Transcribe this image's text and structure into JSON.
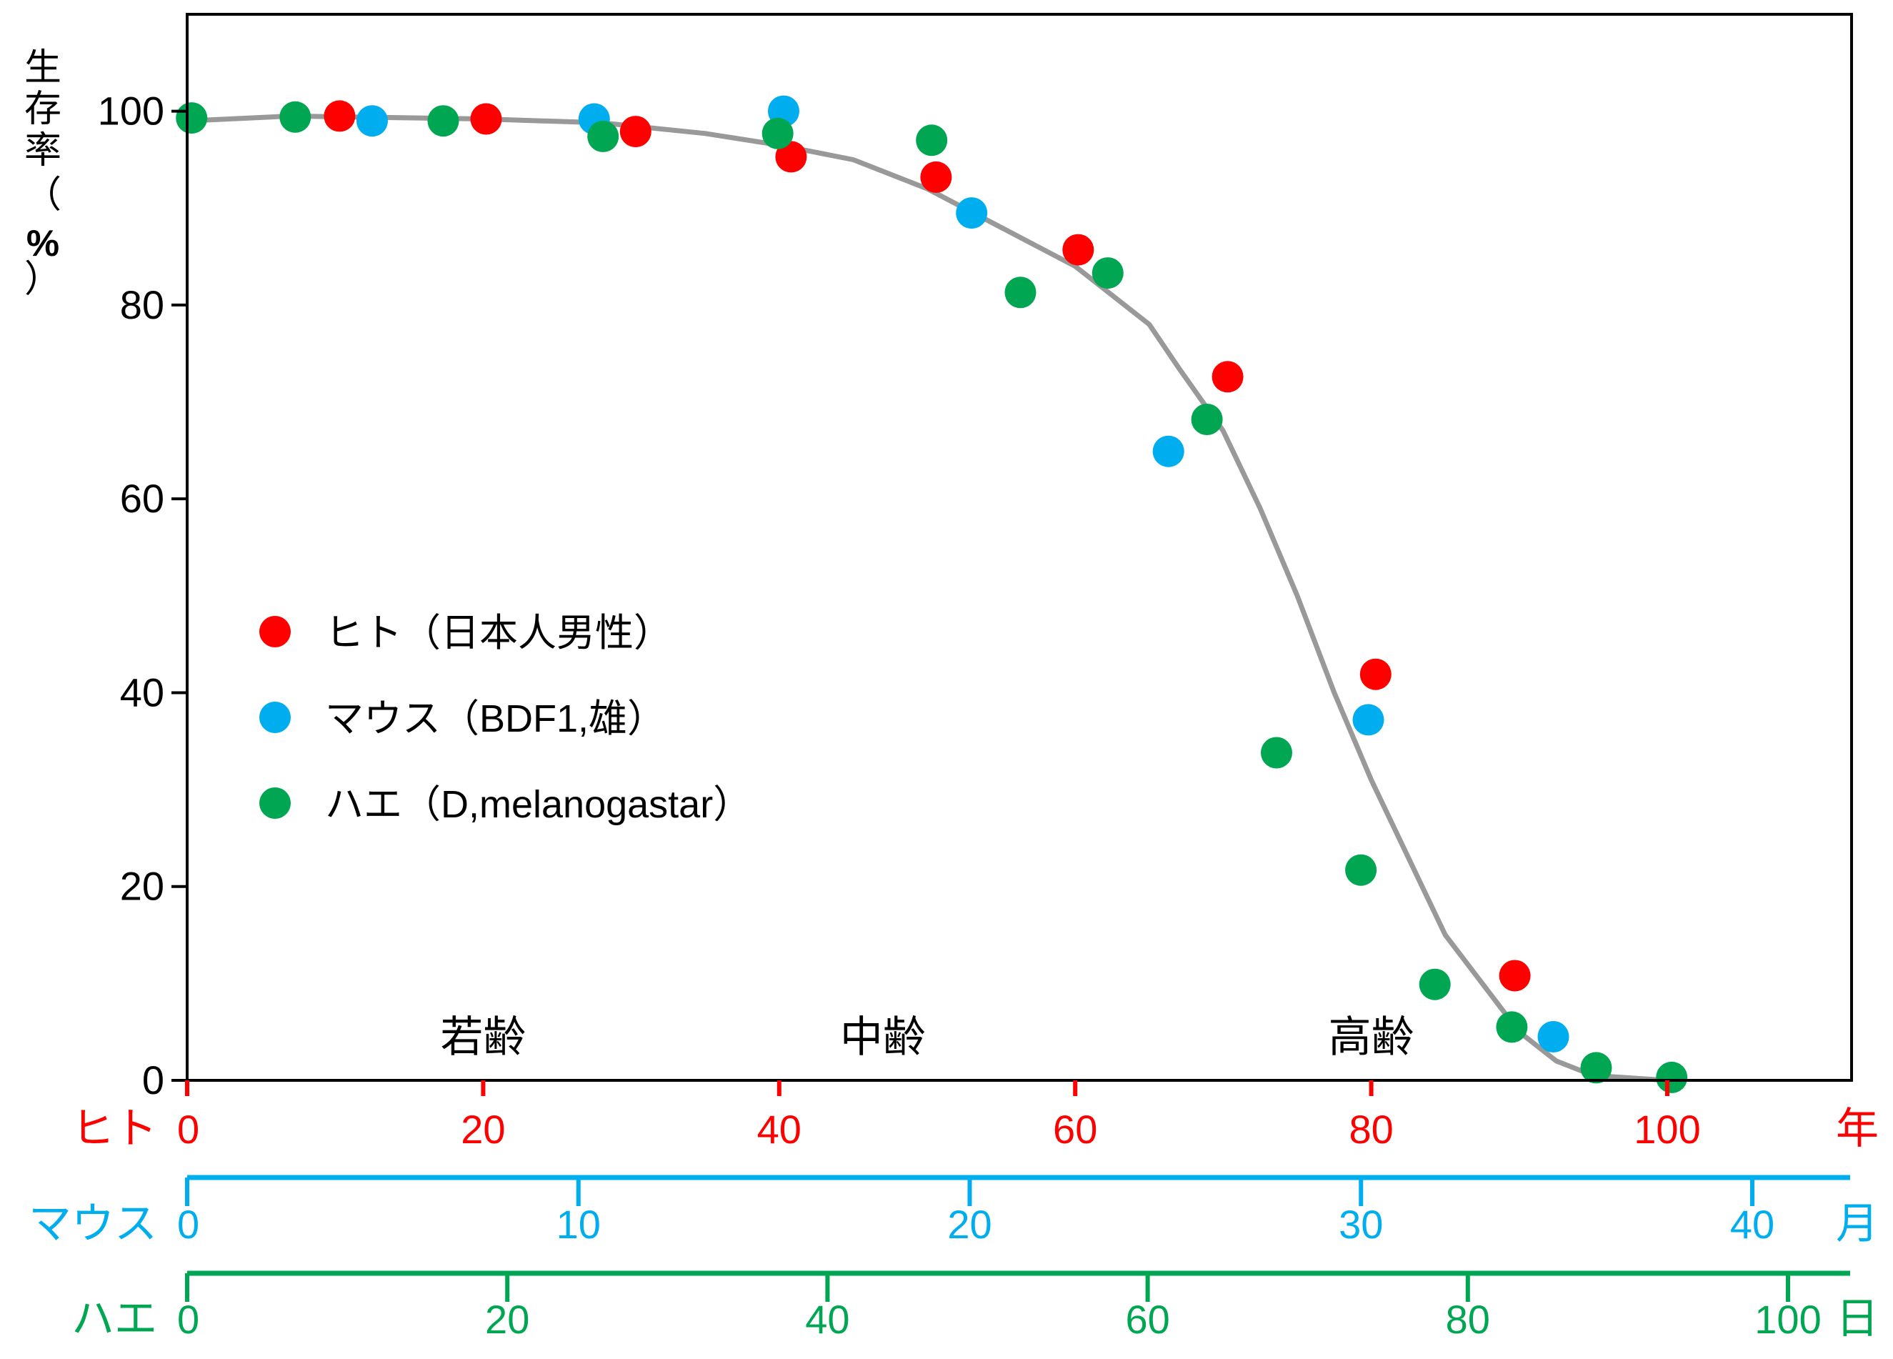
{
  "chart_data": {
    "type": "scatter",
    "ylabel": "生存率（%）",
    "ylabel_chars": [
      "生",
      "存",
      "率",
      "（",
      "%",
      "）"
    ],
    "ylim": [
      0,
      110
    ],
    "yticks": [
      "0",
      "20",
      "40",
      "60",
      "80",
      "100"
    ],
    "x_axes": [
      {
        "label": "ヒト",
        "unit": "年",
        "color": "#ff0000",
        "min": 0,
        "max": 100,
        "ticks": [
          "0",
          "20",
          "40",
          "60",
          "80",
          "100"
        ]
      },
      {
        "label": "マウス",
        "unit": "月",
        "color": "#00aeef",
        "min": 0,
        "max": 40,
        "ticks": [
          "0",
          "10",
          "20",
          "30",
          "40"
        ]
      },
      {
        "label": "ハエ",
        "unit": "日",
        "color": "#00a651",
        "min": 0,
        "max": 100,
        "ticks": [
          "0",
          "20",
          "40",
          "60",
          "80",
          "100"
        ]
      }
    ],
    "x_scale_note": "All points plotted against the ヒト (年) axis",
    "age_stages": [
      {
        "label": "若齢",
        "x": 20
      },
      {
        "label": "中齢",
        "x": 47
      },
      {
        "label": "高齢",
        "x": 80
      }
    ],
    "legend_position": "center-left",
    "curve": {
      "color": "#999999",
      "points": [
        [
          0,
          99
        ],
        [
          7,
          99.5
        ],
        [
          20,
          99.2
        ],
        [
          28,
          98.8
        ],
        [
          35,
          97.7
        ],
        [
          40,
          96.5
        ],
        [
          45,
          95
        ],
        [
          50,
          92
        ],
        [
          55,
          88
        ],
        [
          60,
          84
        ],
        [
          65,
          78
        ],
        [
          67,
          73.5
        ],
        [
          70,
          67
        ],
        [
          72.5,
          59
        ],
        [
          75,
          50
        ],
        [
          77.5,
          40
        ],
        [
          80,
          31
        ],
        [
          82.5,
          23
        ],
        [
          85,
          15
        ],
        [
          87.5,
          10
        ],
        [
          90,
          5
        ],
        [
          92.5,
          2
        ],
        [
          95,
          0.5
        ],
        [
          100,
          0
        ]
      ]
    },
    "series": [
      {
        "name": "ヒト（日本人男性）",
        "color": "#ff0000",
        "points": [
          [
            10.3,
            99.5
          ],
          [
            20.2,
            99.2
          ],
          [
            30.3,
            97.9
          ],
          [
            40.8,
            95.3
          ],
          [
            50.6,
            93.2
          ],
          [
            60.2,
            85.7
          ],
          [
            70.3,
            72.6
          ],
          [
            80.3,
            41.9
          ],
          [
            89.7,
            10.8
          ]
        ]
      },
      {
        "name": "マウス（BDF1,雄）",
        "color": "#00aeef",
        "points": [
          [
            12.5,
            99.0
          ],
          [
            27.5,
            99.2
          ],
          [
            40.3,
            100.0
          ],
          [
            53.0,
            89.5
          ],
          [
            66.3,
            64.9
          ],
          [
            79.8,
            37.2
          ],
          [
            92.3,
            4.5
          ]
        ]
      },
      {
        "name": "ハエ（D,melanogastar）",
        "color": "#00a651",
        "points": [
          [
            0.3,
            99.3
          ],
          [
            7.3,
            99.4
          ],
          [
            17.3,
            99.0
          ],
          [
            28.1,
            97.4
          ],
          [
            39.9,
            97.7
          ],
          [
            50.3,
            97.0
          ],
          [
            56.3,
            81.3
          ],
          [
            62.2,
            83.3
          ],
          [
            68.9,
            68.2
          ],
          [
            73.6,
            33.8
          ],
          [
            79.3,
            21.7
          ],
          [
            84.3,
            9.9
          ],
          [
            89.5,
            5.5
          ],
          [
            95.2,
            1.3
          ],
          [
            100.3,
            0.3
          ]
        ]
      }
    ]
  }
}
